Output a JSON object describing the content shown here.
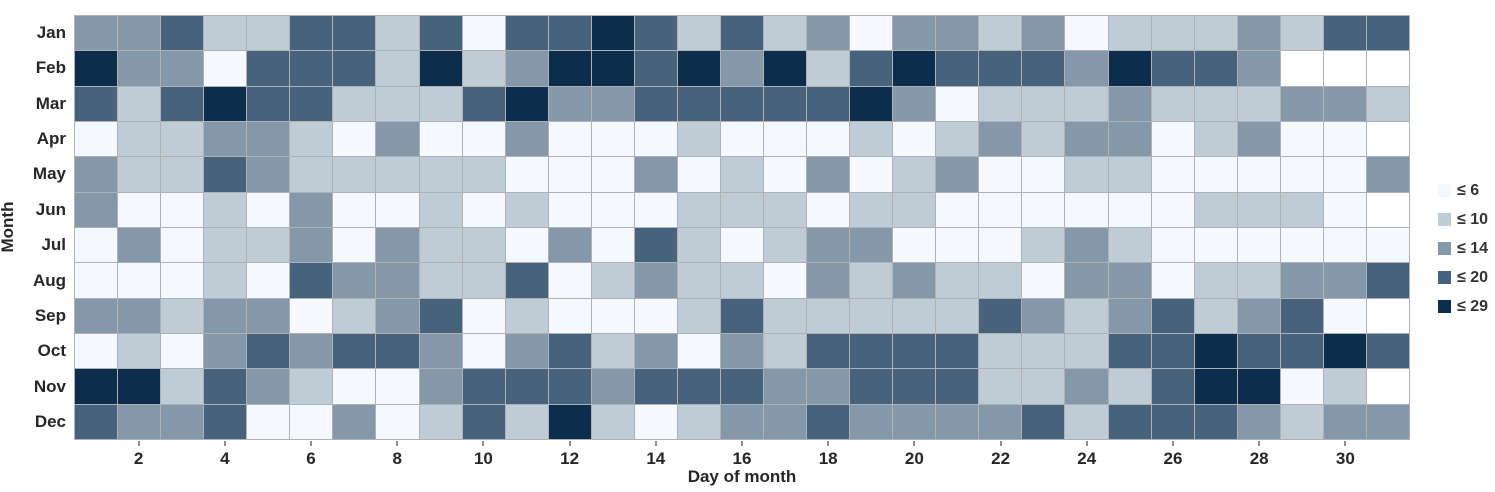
{
  "chart_data": {
    "type": "heatmap",
    "title": "",
    "xlabel": "Day of month",
    "ylabel": "Month",
    "rows": [
      "Jan",
      "Feb",
      "Mar",
      "Apr",
      "May",
      "Jun",
      "Jul",
      "Aug",
      "Sep",
      "Oct",
      "Nov",
      "Dec"
    ],
    "columns_days": 31,
    "x_tick_days": [
      2,
      4,
      6,
      8,
      10,
      12,
      14,
      16,
      18,
      20,
      22,
      24,
      26,
      28,
      30
    ],
    "buckets": [
      6,
      10,
      14,
      20,
      29
    ],
    "legend": [
      {
        "label": "≤ 6",
        "color": "#f5f8fd"
      },
      {
        "label": "≤ 10",
        "color": "#bfcbd5"
      },
      {
        "label": "≤ 14",
        "color": "#8598aa"
      },
      {
        "label": "≤ 20",
        "color": "#47627b"
      },
      {
        "label": "≤ 29",
        "color": "#0d2d4d"
      }
    ],
    "palette": [
      "#f5f8fd",
      "#bfcbd5",
      "#8598aa",
      "#47627b",
      "#0d2d4d"
    ],
    "missing_color": "#ffffff",
    "legend_position": "right",
    "grid_line_color": "#aeb2b6",
    "cell_levels_note": "1..5 = bucket index into palette/legend (1 = ≤ 6 ... 5 = ≤ 29), 0 = no data (day does not exist in month)",
    "cell_levels": {
      "Jan": [
        3,
        3,
        4,
        2,
        2,
        4,
        4,
        2,
        4,
        1,
        4,
        4,
        5,
        4,
        2,
        4,
        2,
        3,
        1,
        3,
        3,
        2,
        3,
        1,
        2,
        2,
        2,
        3,
        2,
        4,
        4
      ],
      "Feb": [
        5,
        3,
        3,
        1,
        4,
        4,
        4,
        2,
        5,
        2,
        3,
        5,
        5,
        4,
        5,
        3,
        5,
        2,
        4,
        5,
        4,
        4,
        4,
        3,
        5,
        4,
        4,
        3,
        0,
        0,
        0
      ],
      "Mar": [
        4,
        2,
        4,
        5,
        4,
        4,
        2,
        2,
        2,
        4,
        5,
        3,
        3,
        4,
        4,
        4,
        4,
        4,
        5,
        3,
        1,
        2,
        2,
        2,
        3,
        2,
        2,
        2,
        3,
        3,
        2
      ],
      "Apr": [
        1,
        2,
        2,
        3,
        3,
        2,
        1,
        3,
        1,
        1,
        3,
        1,
        1,
        1,
        2,
        1,
        1,
        1,
        2,
        1,
        2,
        3,
        2,
        3,
        3,
        1,
        2,
        3,
        1,
        1,
        0
      ],
      "May": [
        3,
        2,
        2,
        4,
        3,
        2,
        2,
        2,
        2,
        2,
        1,
        1,
        1,
        3,
        1,
        2,
        1,
        3,
        1,
        2,
        3,
        1,
        1,
        2,
        2,
        1,
        1,
        1,
        1,
        1,
        3
      ],
      "Jun": [
        3,
        1,
        1,
        2,
        1,
        3,
        1,
        1,
        2,
        1,
        2,
        1,
        1,
        1,
        2,
        2,
        2,
        1,
        2,
        2,
        1,
        1,
        1,
        1,
        1,
        1,
        2,
        2,
        2,
        1,
        0
      ],
      "Jul": [
        1,
        3,
        1,
        2,
        2,
        3,
        1,
        3,
        2,
        2,
        1,
        3,
        1,
        4,
        2,
        1,
        2,
        3,
        3,
        1,
        1,
        1,
        2,
        3,
        2,
        1,
        1,
        1,
        1,
        1,
        1
      ],
      "Aug": [
        1,
        1,
        1,
        2,
        1,
        4,
        3,
        3,
        2,
        2,
        4,
        1,
        2,
        3,
        2,
        2,
        1,
        3,
        2,
        3,
        2,
        2,
        1,
        3,
        3,
        1,
        2,
        2,
        3,
        3,
        4
      ],
      "Sep": [
        3,
        3,
        2,
        3,
        3,
        1,
        2,
        3,
        4,
        1,
        2,
        1,
        1,
        1,
        2,
        4,
        2,
        2,
        2,
        2,
        2,
        4,
        3,
        2,
        3,
        4,
        2,
        3,
        4,
        1,
        0
      ],
      "Oct": [
        1,
        2,
        1,
        3,
        4,
        3,
        4,
        4,
        3,
        1,
        3,
        4,
        2,
        3,
        1,
        3,
        2,
        4,
        4,
        4,
        4,
        2,
        2,
        2,
        4,
        4,
        5,
        4,
        4,
        5,
        4
      ],
      "Nov": [
        5,
        5,
        2,
        4,
        3,
        2,
        1,
        1,
        3,
        4,
        4,
        4,
        3,
        4,
        4,
        4,
        3,
        3,
        4,
        4,
        4,
        2,
        2,
        3,
        2,
        4,
        5,
        5,
        1,
        2,
        0
      ],
      "Dec": [
        4,
        3,
        3,
        4,
        1,
        1,
        3,
        1,
        2,
        4,
        2,
        5,
        2,
        1,
        2,
        3,
        3,
        4,
        3,
        3,
        3,
        3,
        4,
        2,
        4,
        4,
        4,
        3,
        2,
        3,
        3
      ]
    }
  }
}
